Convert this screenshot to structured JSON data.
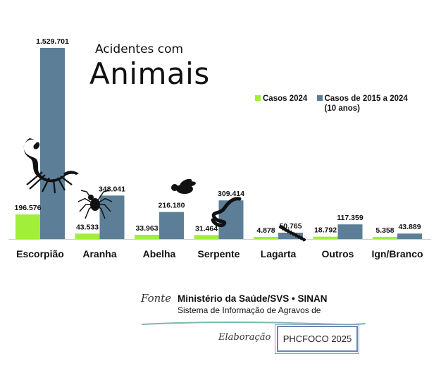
{
  "title": {
    "line1": "Acidentes com",
    "line2": "Animais"
  },
  "legend": {
    "series1": "Casos 2024",
    "series2": "Casos de 2015 a 2024",
    "series2_note": "(10 anos)"
  },
  "source": {
    "label": "Fonte",
    "organization": "Ministério da Saúde/SVS • SINAN",
    "system": "Sistema de Informação de Agravos de"
  },
  "elaboration": {
    "label": "Elaboração",
    "value": "PHCFOCO 2025"
  },
  "colors": {
    "series1": "#a1ee3b",
    "series2": "#5c7f97",
    "text": "#111111"
  },
  "icons": [
    "scorpion-icon",
    "spider-icon",
    "bee-icon",
    "snake-icon",
    "caterpillar-icon"
  ],
  "chart_data": {
    "type": "bar",
    "categories": [
      "Escorpião",
      "Aranha",
      "Abelha",
      "Serpente",
      "Lagarta",
      "Outros",
      "Ign/Branco"
    ],
    "series": [
      {
        "name": "Casos 2024",
        "values": [
          196576,
          43533,
          33963,
          31464,
          4878,
          18792,
          5358
        ],
        "labels": [
          "196.576",
          "43.533",
          "33.963",
          "31.464",
          "4.878",
          "18.792",
          "5.358"
        ]
      },
      {
        "name": "Casos de 2015 a 2024",
        "values": [
          1529701,
          348041,
          216180,
          309414,
          50765,
          117359,
          43889
        ],
        "labels": [
          "1.529.701",
          "348.041",
          "216.180",
          "309.414",
          "50.765",
          "117.359",
          "43.889"
        ]
      }
    ],
    "ylim": [
      0,
      1529701
    ],
    "grid": false,
    "legend_position": "top-right"
  }
}
